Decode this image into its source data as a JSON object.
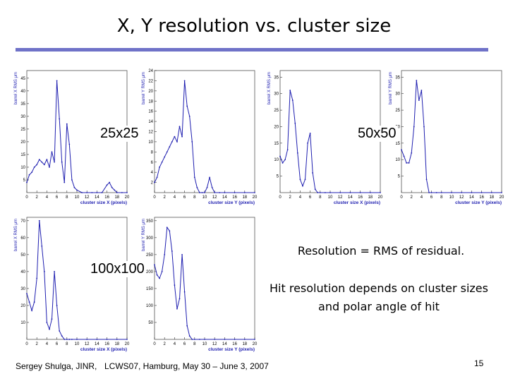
{
  "slide": {
    "title": "X, Y resolution vs. cluster size",
    "label_25": "25x25",
    "label_50": "50x50",
    "label_100": "100x100",
    "note1": "Resolution = RMS of residual.",
    "note2": "Hit resolution depends on cluster sizes and polar angle of hit",
    "footer_author": "Sergey Shulga, JINR,",
    "footer_event": "LCWS07, Hamburg, May 30 – June 3, 2007",
    "page_number": "15",
    "accent_color": "#6f72c8",
    "line_color": "#1f1fb0"
  },
  "chart_data": [
    {
      "id": "p25x",
      "type": "line",
      "xlabel": "cluster size X (pixels)",
      "ylabel": "barrel X RMS μm",
      "xlim": [
        0,
        20
      ],
      "ylim": [
        0,
        48
      ],
      "xticks": [
        0,
        2,
        4,
        6,
        8,
        10,
        12,
        14,
        16,
        18,
        20
      ],
      "yticks": [
        5,
        10,
        15,
        20,
        25,
        30,
        35,
        40,
        45
      ],
      "x": [
        0,
        0.5,
        1,
        1.5,
        2,
        2.5,
        3,
        3.5,
        4,
        4.5,
        5,
        5.5,
        6,
        6.5,
        7,
        7.5,
        8,
        8.5,
        9,
        9.5,
        10,
        11,
        12,
        13,
        14,
        15,
        16,
        16.5,
        17,
        17.5,
        18,
        19,
        20
      ],
      "y": [
        4,
        7,
        8,
        10,
        11,
        13,
        12,
        11,
        13,
        10,
        16,
        12,
        44,
        29,
        12,
        4,
        27,
        19,
        5,
        2,
        1,
        0,
        0,
        0,
        0,
        0,
        3,
        4,
        2,
        1,
        0,
        0,
        0
      ]
    },
    {
      "id": "p25y",
      "type": "line",
      "xlabel": "cluster size Y (pixels)",
      "ylabel": "barrel Y RMS μm",
      "xlim": [
        0,
        20
      ],
      "ylim": [
        0,
        24
      ],
      "xticks": [
        0,
        2,
        4,
        6,
        8,
        10,
        12,
        14,
        16,
        18,
        20
      ],
      "yticks": [
        2,
        4,
        6,
        8,
        10,
        12,
        14,
        16,
        18,
        20,
        22,
        24
      ],
      "x": [
        0,
        0.5,
        1,
        1.5,
        2,
        2.5,
        3,
        3.5,
        4,
        4.5,
        5,
        5.5,
        6,
        6.5,
        7,
        7.5,
        8,
        8.5,
        9,
        9.5,
        10,
        10.5,
        11,
        11.5,
        12,
        13,
        14,
        16,
        18,
        20
      ],
      "y": [
        2,
        3,
        5,
        6,
        7,
        8,
        9,
        10,
        11,
        10,
        13,
        11,
        22,
        17,
        15,
        10,
        3,
        1,
        0,
        0,
        0,
        1,
        3,
        1,
        0,
        0,
        0,
        0,
        0,
        0
      ]
    },
    {
      "id": "p50x",
      "type": "line",
      "xlabel": "cluster size X (pixels)",
      "ylabel": "barrel X RMS μm",
      "xlim": [
        0,
        20
      ],
      "ylim": [
        0,
        37
      ],
      "xticks": [
        0,
        2,
        4,
        6,
        8,
        10,
        12,
        14,
        16,
        18,
        20
      ],
      "yticks": [
        5,
        10,
        15,
        20,
        25,
        30,
        35
      ],
      "x": [
        0,
        0.5,
        1,
        1.5,
        2,
        2.5,
        3,
        3.5,
        4,
        4.5,
        5,
        5.5,
        6,
        6.5,
        7,
        7.5,
        8,
        9,
        10,
        12,
        14,
        16,
        18,
        20
      ],
      "y": [
        11,
        9,
        10,
        13,
        31,
        28,
        21,
        12,
        4,
        2,
        4,
        15,
        18,
        6,
        1,
        0,
        0,
        0,
        0,
        0,
        0,
        0,
        0,
        0
      ]
    },
    {
      "id": "p50y",
      "type": "line",
      "xlabel": "cluster size Y (pixels)",
      "ylabel": "barrel Y RMS μm",
      "xlim": [
        0,
        20
      ],
      "ylim": [
        0,
        37
      ],
      "xticks": [
        0,
        2,
        4,
        6,
        8,
        10,
        12,
        14,
        16,
        18,
        20
      ],
      "yticks": [
        5,
        10,
        15,
        20,
        25,
        30,
        35
      ],
      "x": [
        0,
        0.5,
        1,
        1.5,
        2,
        2.5,
        3,
        3.5,
        4,
        4.5,
        5,
        5.5,
        6,
        7,
        8,
        10,
        12,
        14,
        16,
        18,
        20
      ],
      "y": [
        13,
        11,
        9,
        9,
        12,
        20,
        34,
        28,
        31,
        20,
        4,
        0,
        0,
        0,
        0,
        0,
        0,
        0,
        0,
        0,
        0
      ]
    },
    {
      "id": "p100x",
      "type": "line",
      "xlabel": "cluster size X (pixels)",
      "ylabel": "barrel X RMS μm",
      "xlim": [
        0,
        20
      ],
      "ylim": [
        0,
        72
      ],
      "xticks": [
        0,
        2,
        4,
        6,
        8,
        10,
        12,
        14,
        16,
        18,
        20
      ],
      "yticks": [
        10,
        20,
        30,
        40,
        50,
        60,
        70
      ],
      "x": [
        0,
        0.5,
        1,
        1.5,
        2,
        2.5,
        3,
        3.5,
        4,
        4.5,
        5,
        5.5,
        6,
        6.5,
        7,
        7.5,
        8,
        8.5,
        9,
        10,
        12,
        14,
        16,
        18,
        20
      ],
      "y": [
        27,
        22,
        17,
        22,
        36,
        70,
        55,
        40,
        10,
        6,
        12,
        40,
        20,
        5,
        2,
        0,
        0,
        0,
        0,
        0,
        0,
        0,
        0,
        0,
        0
      ]
    },
    {
      "id": "p100y",
      "type": "line",
      "xlabel": "cluster size Y (pixels)",
      "ylabel": "barrel Y RMS μm",
      "xlim": [
        0,
        20
      ],
      "ylim": [
        0,
        360
      ],
      "xticks": [
        0,
        2,
        4,
        6,
        8,
        10,
        12,
        14,
        16,
        18,
        20
      ],
      "yticks": [
        50,
        100,
        150,
        200,
        250,
        300,
        350
      ],
      "x": [
        0,
        0.5,
        1,
        1.5,
        2,
        2.5,
        3,
        3.5,
        4,
        4.5,
        5,
        5.5,
        6,
        6.5,
        7,
        7.5,
        8,
        9,
        10,
        12,
        14,
        16,
        18,
        20
      ],
      "y": [
        220,
        190,
        180,
        200,
        250,
        330,
        320,
        260,
        160,
        90,
        120,
        250,
        140,
        40,
        10,
        0,
        0,
        0,
        0,
        0,
        0,
        0,
        0,
        0
      ]
    }
  ]
}
